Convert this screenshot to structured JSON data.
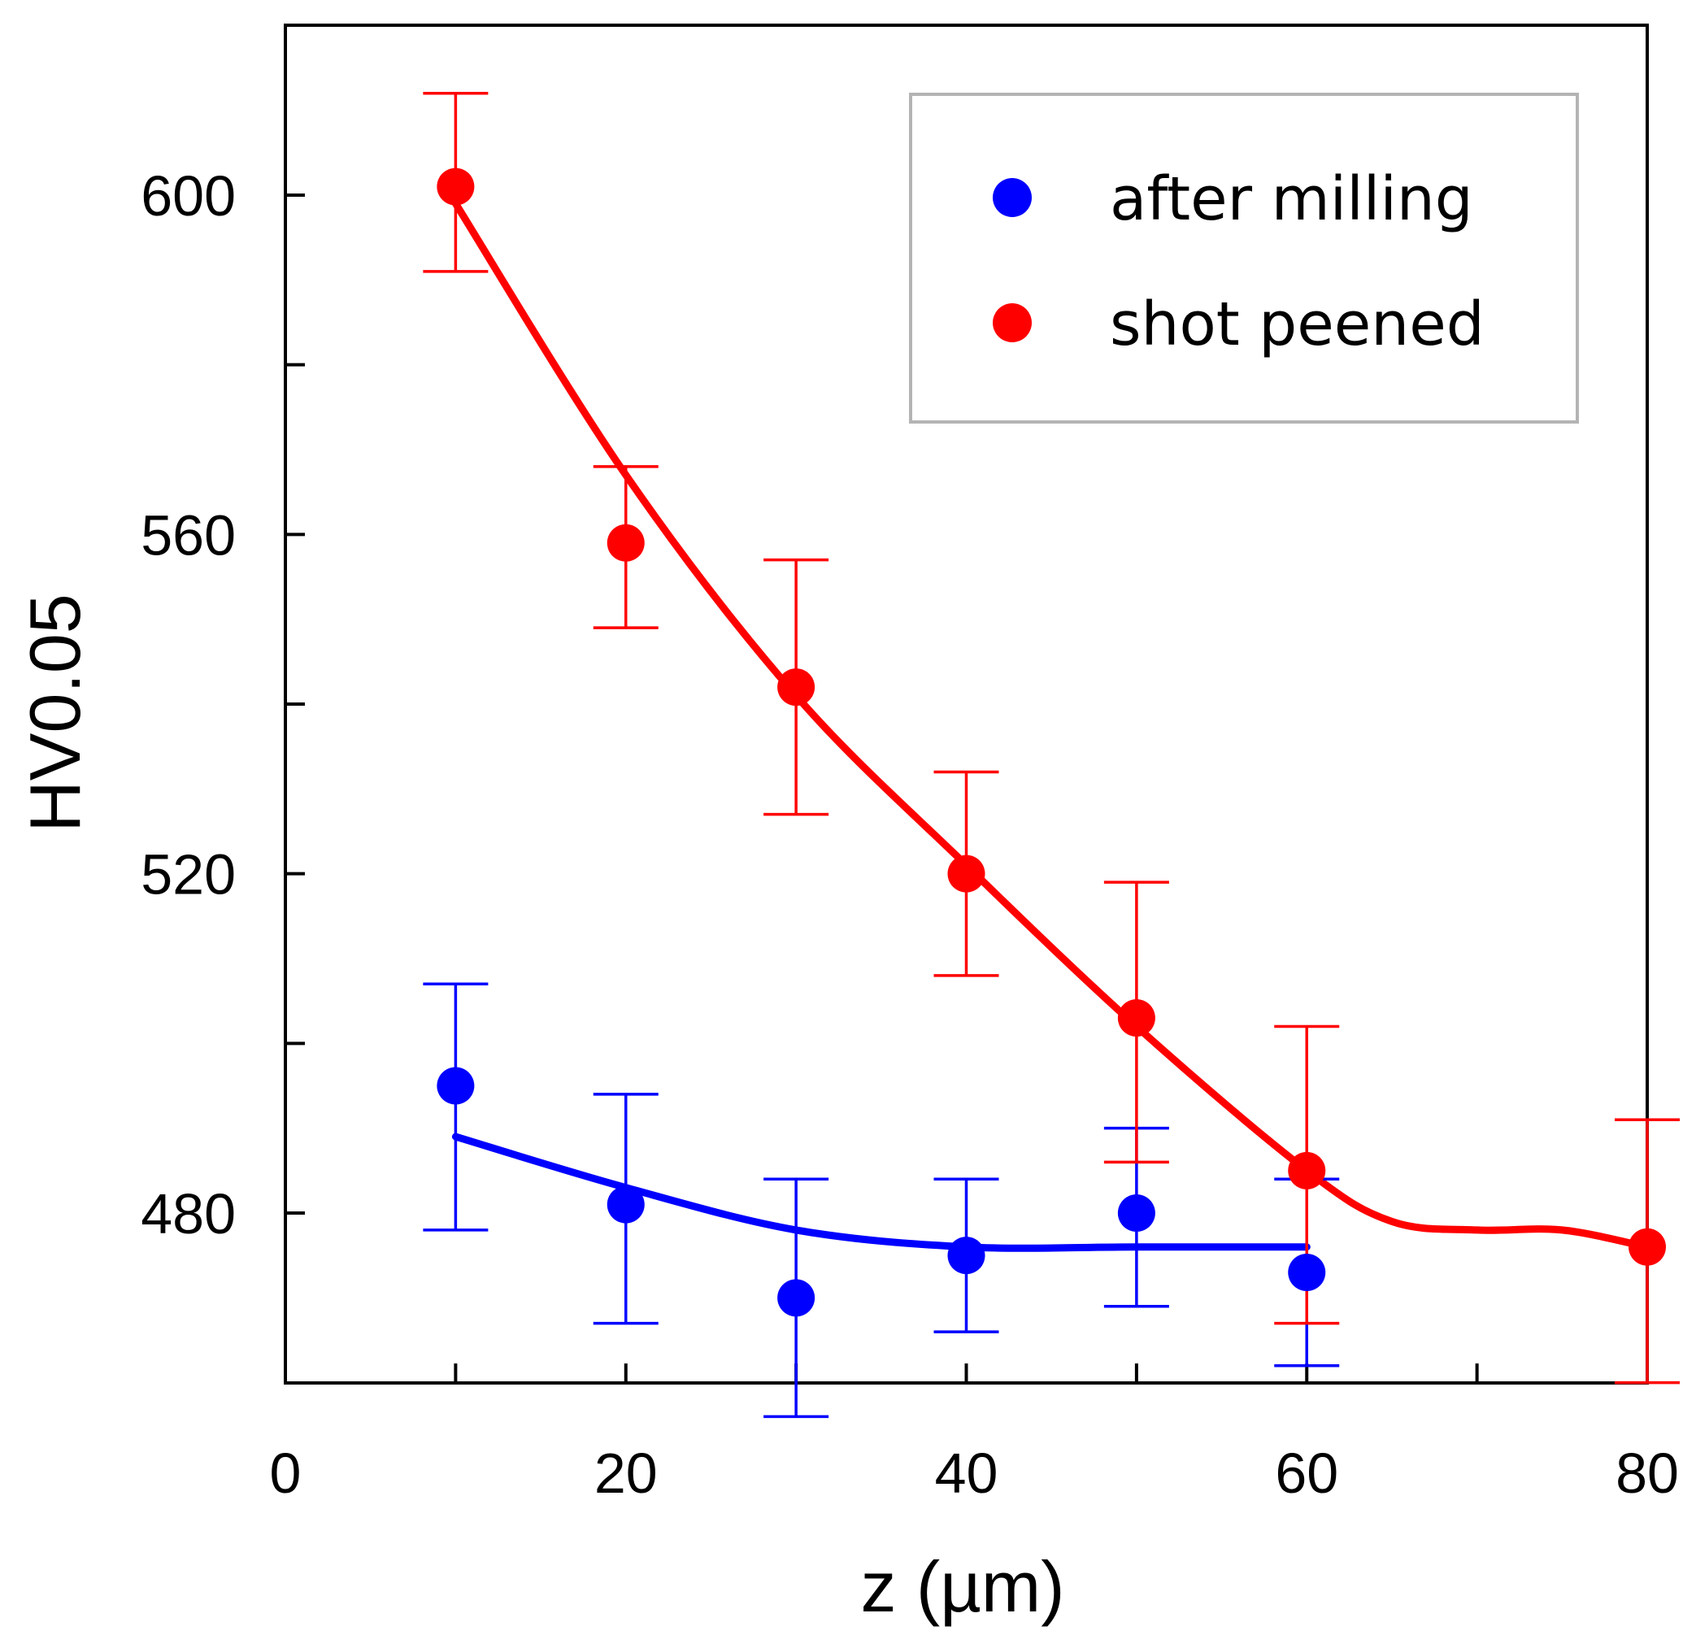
{
  "chart_data": {
    "type": "scatter",
    "xlabel": "z (µm)",
    "ylabel": "HV0.05",
    "xlim": [
      0,
      80
    ],
    "ylim": [
      460,
      620
    ],
    "xticks": [
      0,
      10,
      20,
      30,
      40,
      50,
      60,
      70,
      80
    ],
    "xtick_labels": [
      "0",
      "20",
      "40",
      "60",
      "80"
    ],
    "xtick_label_values": [
      0,
      20,
      40,
      60,
      80
    ],
    "yticks": [
      480,
      500,
      520,
      540,
      560,
      580,
      600
    ],
    "ytick_labels": [
      "480",
      "520",
      "560",
      "600"
    ],
    "ytick_label_values": [
      480,
      520,
      560,
      600
    ],
    "grid": false,
    "legend_position": "top-right",
    "series": [
      {
        "name": "after milling",
        "color": "#0000ff",
        "x": [
          10,
          20,
          30,
          40,
          50,
          60
        ],
        "y": [
          495,
          481,
          470,
          475,
          480,
          473
        ],
        "err_low": [
          478,
          467,
          456,
          466,
          469,
          462
        ],
        "err_high": [
          507,
          494,
          484,
          484,
          490,
          484
        ],
        "fit_x": [
          10,
          20,
          30,
          40,
          50,
          60
        ],
        "fit_y": [
          489,
          483,
          478,
          476,
          476,
          476
        ]
      },
      {
        "name": "shot peened",
        "color": "#ff0000",
        "x": [
          10,
          20,
          30,
          40,
          50,
          60,
          80
        ],
        "y": [
          601,
          559,
          542,
          520,
          503,
          485,
          476
        ],
        "err_low": [
          591,
          549,
          527,
          508,
          486,
          467,
          460
        ],
        "err_high": [
          612,
          568,
          557,
          532,
          519,
          502,
          491
        ],
        "fit_x": [
          10,
          20,
          30,
          40,
          50,
          60,
          65,
          70,
          75,
          80
        ],
        "fit_y": [
          599,
          567,
          541,
          521,
          502,
          485,
          479,
          478,
          478,
          476
        ]
      }
    ]
  }
}
